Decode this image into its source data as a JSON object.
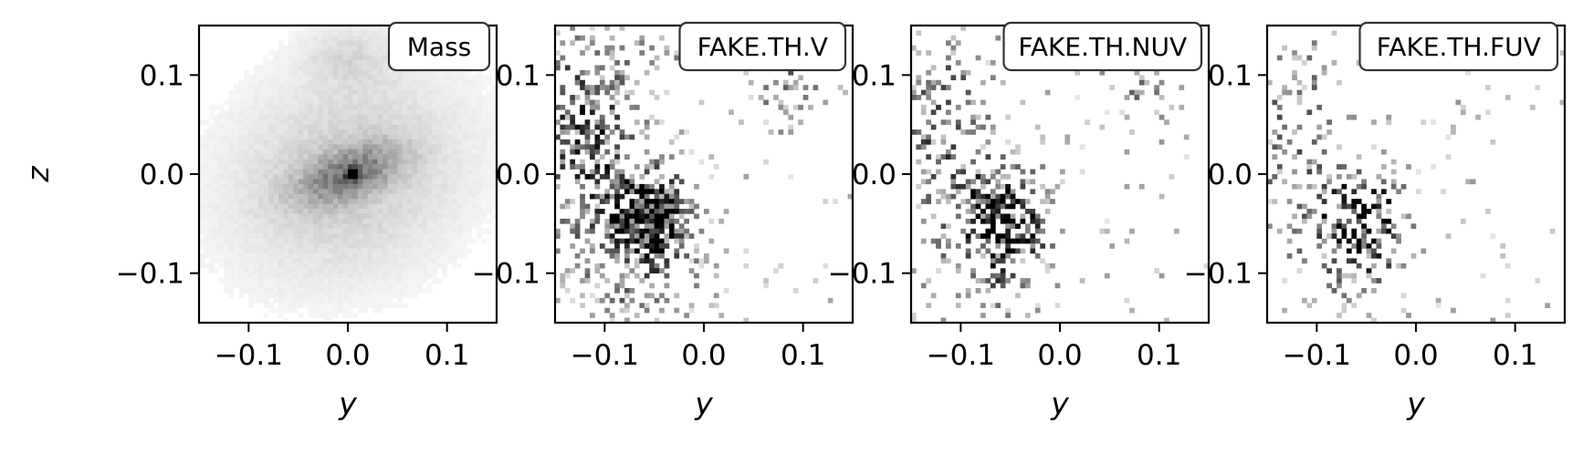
{
  "figure": {
    "background": "#ffffff",
    "colormap": "gray_r"
  },
  "chart_data": [
    {
      "type": "heatmap",
      "title": "Mass",
      "xlabel": "y",
      "ylabel": "z",
      "xlim": [
        -0.15,
        0.15
      ],
      "ylim": [
        -0.15,
        0.15
      ],
      "xticks": [
        -0.1,
        0.0,
        0.1
      ],
      "yticks": [
        -0.1,
        0.0,
        0.1
      ],
      "xtick_labels": [
        "−0.1",
        "0.0",
        "0.1"
      ],
      "ytick_labels": [
        "−0.1",
        "0.0",
        "0.1"
      ],
      "grid": false,
      "bins": 60
    },
    {
      "type": "heatmap",
      "title": "FAKE.TH.V",
      "xlabel": "y",
      "ylabel": "",
      "xlim": [
        -0.15,
        0.15
      ],
      "ylim": [
        -0.15,
        0.15
      ],
      "xticks": [
        -0.1,
        0.0,
        0.1
      ],
      "yticks": [
        -0.1,
        0.0,
        0.1
      ],
      "xtick_labels": [
        "−0.1",
        "0.0",
        "0.1"
      ],
      "ytick_labels": [
        "−0.1",
        "0.0",
        "0.1"
      ],
      "grid": false,
      "bins": 60
    },
    {
      "type": "heatmap",
      "title": "FAKE.TH.NUV",
      "xlabel": "y",
      "ylabel": "",
      "xlim": [
        -0.15,
        0.15
      ],
      "ylim": [
        -0.15,
        0.15
      ],
      "xticks": [
        -0.1,
        0.0,
        0.1
      ],
      "yticks": [
        -0.1,
        0.0,
        0.1
      ],
      "xtick_labels": [
        "−0.1",
        "0.0",
        "0.1"
      ],
      "ytick_labels": [
        "−0.1",
        "0.0",
        "0.1"
      ],
      "grid": false,
      "bins": 60
    },
    {
      "type": "heatmap",
      "title": "FAKE.TH.FUV",
      "xlabel": "y",
      "ylabel": "",
      "xlim": [
        -0.15,
        0.15
      ],
      "ylim": [
        -0.15,
        0.15
      ],
      "xticks": [
        -0.1,
        0.0,
        0.1
      ],
      "yticks": [
        -0.1,
        0.0,
        0.1
      ],
      "xtick_labels": [
        "−0.1",
        "0.0",
        "0.1"
      ],
      "ytick_labels": [
        "−0.1",
        "0.0",
        "0.1"
      ],
      "grid": false,
      "bins": 60
    }
  ]
}
